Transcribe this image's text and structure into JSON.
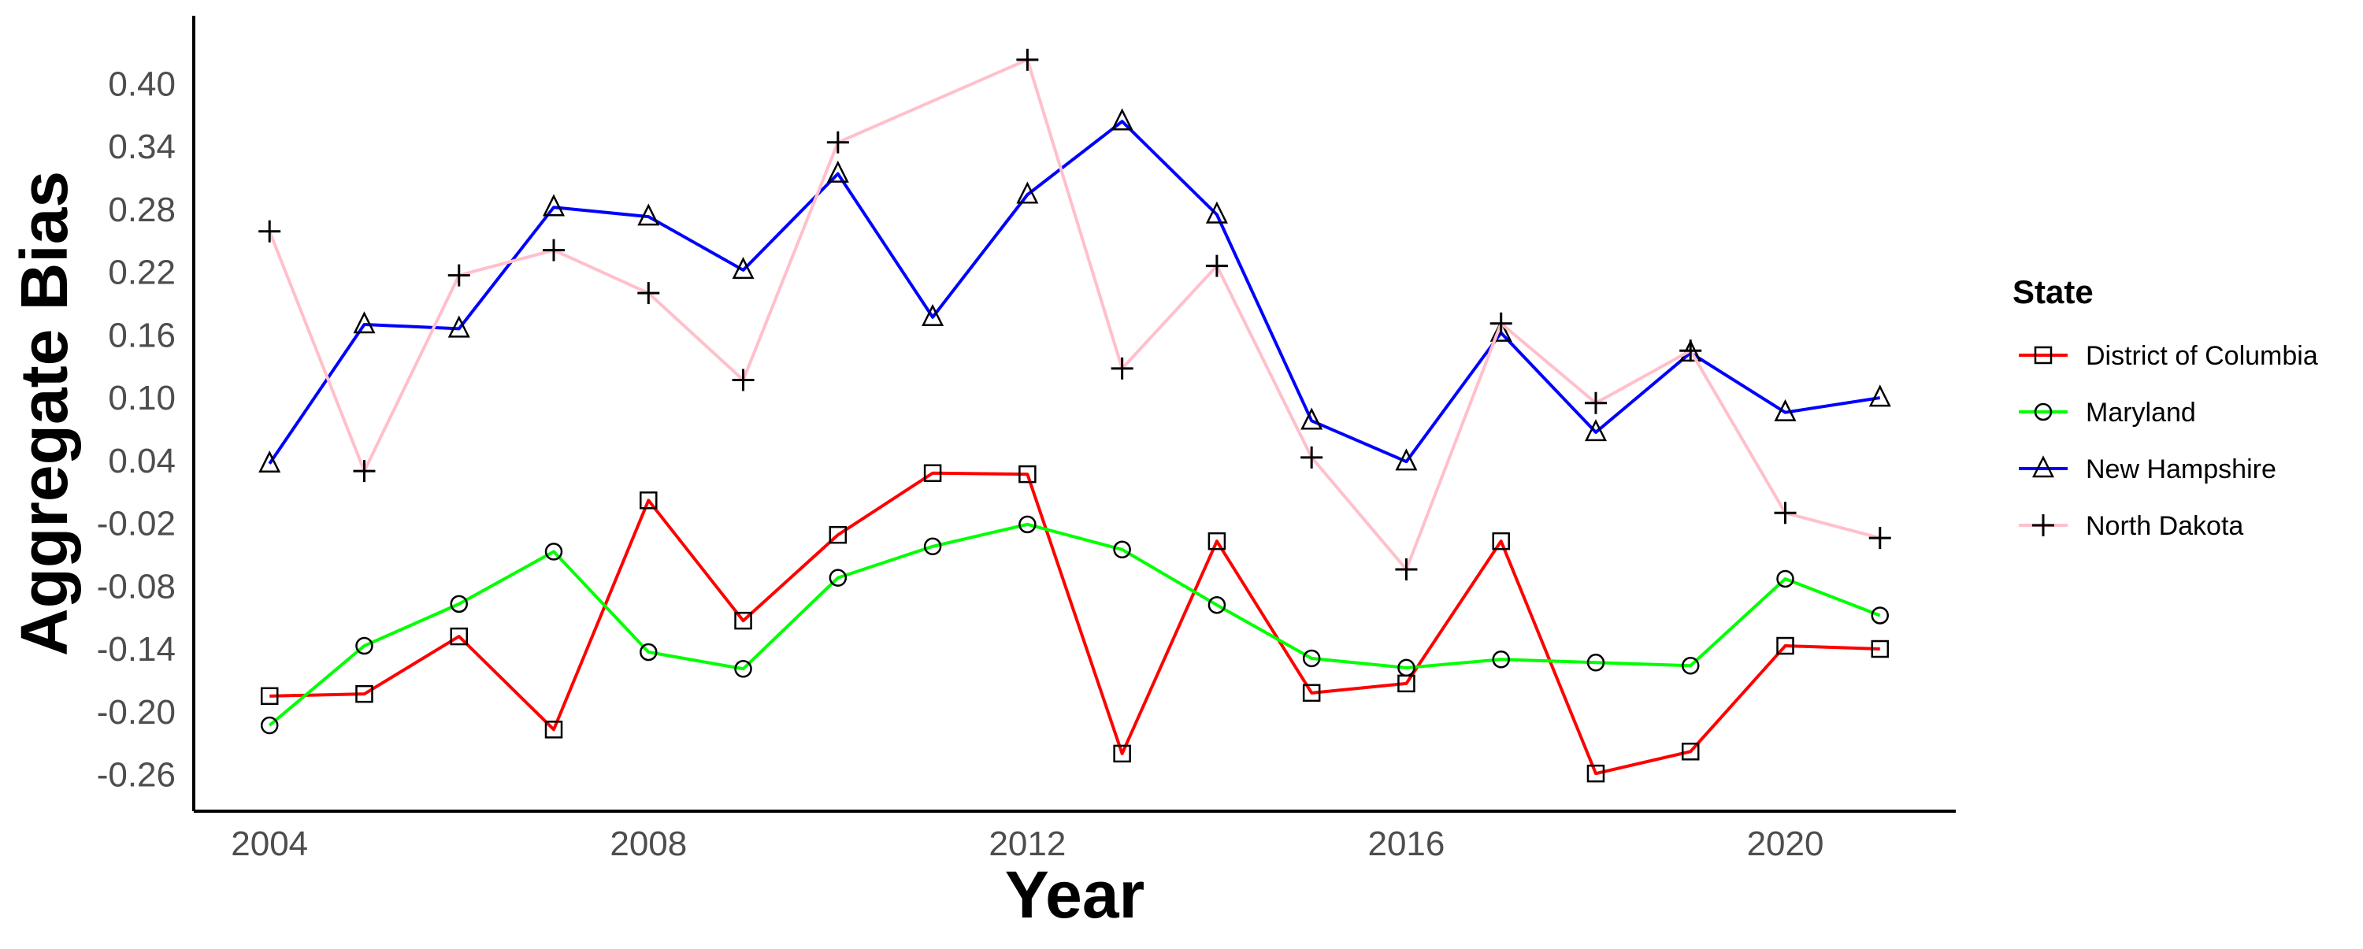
{
  "chart_data": {
    "type": "line",
    "xlabel": "Year",
    "ylabel": "Aggregate Bias",
    "xlim": [
      2003.2,
      2021.8
    ],
    "ylim": [
      -0.295,
      0.465
    ],
    "x_ticks": [
      "2004",
      "2008",
      "2012",
      "2016",
      "2020"
    ],
    "y_ticks": [
      "0.40",
      "0.34",
      "0.28",
      "0.22",
      "0.16",
      "0.10",
      "0.04",
      "-0.02",
      "-0.08",
      "-0.14",
      "-0.20",
      "-0.26"
    ],
    "x": [
      2004,
      2005,
      2006,
      2007,
      2008,
      2009,
      2010,
      2011,
      2012,
      2013,
      2014,
      2015,
      2016,
      2017,
      2018,
      2019,
      2020,
      2021
    ],
    "legend": {
      "title": "State",
      "position": "right"
    },
    "grid": false,
    "series": [
      {
        "name": "District of Columbia",
        "color": "#ff0000",
        "marker": "square",
        "values": [
          -0.185,
          -0.183,
          -0.128,
          -0.217,
          0.002,
          -0.113,
          -0.031,
          0.028,
          0.027,
          -0.24,
          -0.037,
          -0.182,
          -0.173,
          -0.037,
          -0.259,
          -0.238,
          -0.137,
          -0.14
        ]
      },
      {
        "name": "Maryland",
        "color": "#00ff00",
        "marker": "circle",
        "values": [
          -0.213,
          -0.137,
          -0.097,
          -0.047,
          -0.143,
          -0.159,
          -0.072,
          -0.042,
          -0.021,
          -0.045,
          -0.098,
          -0.149,
          -0.158,
          -0.15,
          -0.153,
          -0.156,
          -0.073,
          -0.108
        ]
      },
      {
        "name": "New Hampshire",
        "color": "#0000ff",
        "marker": "triangle",
        "values": [
          0.037,
          0.17,
          0.166,
          0.282,
          0.273,
          0.222,
          0.314,
          0.177,
          0.294,
          0.364,
          0.275,
          0.078,
          0.039,
          0.162,
          0.067,
          0.143,
          0.086,
          0.1
        ]
      },
      {
        "name": "North Dakota",
        "color": "#ffc0cb",
        "marker": "plus",
        "values": [
          0.259,
          0.03,
          0.217,
          0.241,
          0.2,
          0.117,
          0.344,
          null,
          0.423,
          0.128,
          0.226,
          0.043,
          -0.064,
          0.171,
          0.095,
          0.145,
          -0.01,
          -0.034
        ]
      }
    ]
  }
}
